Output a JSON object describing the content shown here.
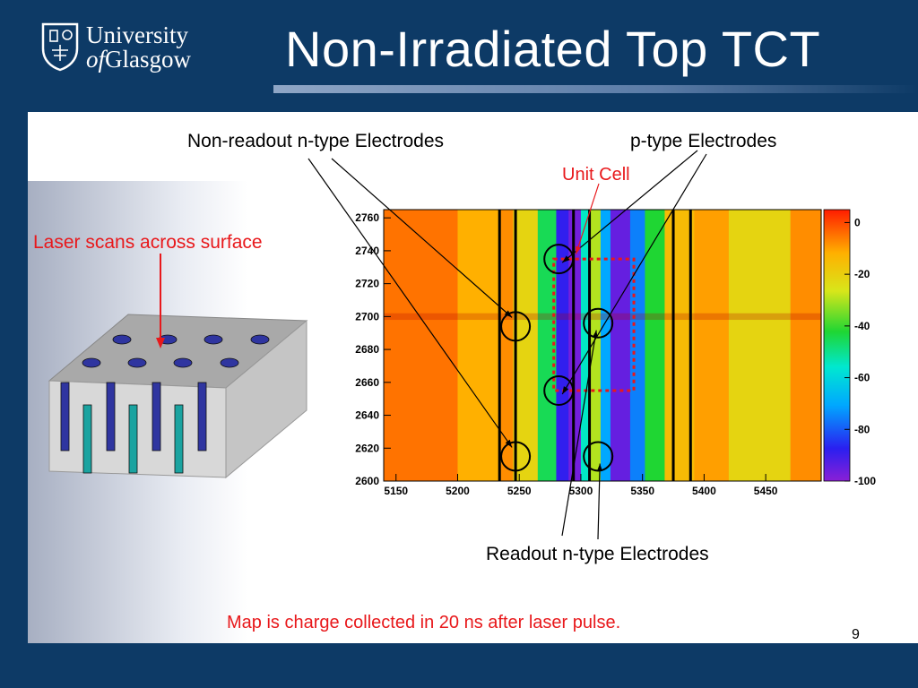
{
  "slide": {
    "title": "Non-Irradiated Top TCT",
    "page_number": "9",
    "logo": {
      "line1": "University",
      "line2_prefix": "of",
      "line2_rest": "Glasgow"
    },
    "labels": {
      "laser": "Laser scans across surface",
      "non_readout": "Non-readout n-type Electrodes",
      "p_type": "p-type Electrodes",
      "unit_cell": "Unit Cell",
      "readout": "Readout n-type Electrodes",
      "caption": "Map is charge collected in 20 ns after laser pulse."
    },
    "colors": {
      "background": "#0d3a66",
      "annotation_red": "#e8181b",
      "pillar_blue": "#2f35a0",
      "pillar_teal": "#1aa3a0"
    }
  },
  "chart_data": {
    "type": "heatmap",
    "x_ticks": [
      5150,
      5200,
      5250,
      5300,
      5350,
      5400,
      5450
    ],
    "y_ticks": [
      2600,
      2620,
      2640,
      2660,
      2680,
      2700,
      2720,
      2740,
      2760
    ],
    "xlim": [
      5140,
      5495
    ],
    "ylim": [
      2600,
      2765
    ],
    "z_range": [
      -100,
      5
    ],
    "colorbar_ticks": [
      0,
      -20,
      -40,
      -60,
      -80,
      -100
    ],
    "colorscale": "rainbow (violet low, red high)",
    "electrode_lines_x": [
      5234,
      5247,
      5294,
      5307,
      5375,
      5389
    ],
    "columns": [
      {
        "x_from": 5140,
        "x_to": 5200,
        "value": -5
      },
      {
        "x_from": 5200,
        "x_to": 5235,
        "value": -12
      },
      {
        "x_from": 5235,
        "x_to": 5245,
        "value": -8
      },
      {
        "x_from": 5245,
        "x_to": 5265,
        "value": -22
      },
      {
        "x_from": 5265,
        "x_to": 5280,
        "value": -45
      },
      {
        "x_from": 5280,
        "x_to": 5290,
        "value": -88
      },
      {
        "x_from": 5290,
        "x_to": 5300,
        "value": -97
      },
      {
        "x_from": 5300,
        "x_to": 5308,
        "value": -55
      },
      {
        "x_from": 5308,
        "x_to": 5316,
        "value": -30
      },
      {
        "x_from": 5316,
        "x_to": 5324,
        "value": -70
      },
      {
        "x_from": 5324,
        "x_to": 5340,
        "value": -95
      },
      {
        "x_from": 5340,
        "x_to": 5352,
        "value": -75
      },
      {
        "x_from": 5352,
        "x_to": 5368,
        "value": -42
      },
      {
        "x_from": 5368,
        "x_to": 5392,
        "value": -15
      },
      {
        "x_from": 5392,
        "x_to": 5420,
        "value": -10
      },
      {
        "x_from": 5420,
        "x_to": 5470,
        "value": -22
      },
      {
        "x_from": 5470,
        "x_to": 5495,
        "value": -8
      }
    ],
    "unit_cell_box": {
      "x": [
        5278,
        5343
      ],
      "y": [
        2655,
        2735
      ]
    },
    "circles": [
      {
        "x": 5282,
        "y": 2735,
        "group": "p_type"
      },
      {
        "x": 5282,
        "y": 2655,
        "group": "p_type"
      },
      {
        "x": 5247,
        "y": 2694,
        "group": "non_readout"
      },
      {
        "x": 5247,
        "y": 2615,
        "group": "non_readout"
      },
      {
        "x": 5314,
        "y": 2696,
        "group": "readout"
      },
      {
        "x": 5314,
        "y": 2615,
        "group": "readout"
      }
    ]
  }
}
